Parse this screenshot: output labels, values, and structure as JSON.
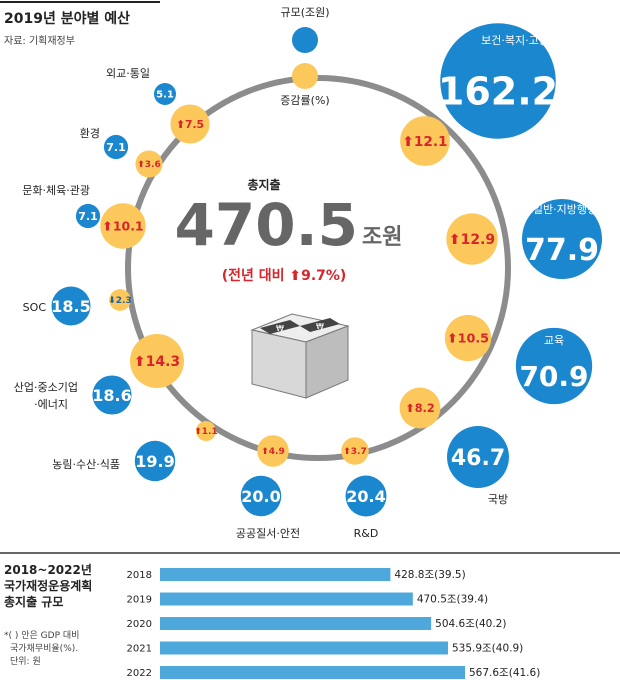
{
  "header": {
    "title": "2019년 분야별 예산",
    "source": "자료: 기획재정부"
  },
  "legend": {
    "size_label": "규모(조원)",
    "rate_label": "증감률(%)"
  },
  "center": {
    "label": "총지출",
    "value": "470.5",
    "unit": "조원",
    "change": "(전년 대비 ⬆9.7%)"
  },
  "colors": {
    "blue": "#1b87cf",
    "yellow": "#fcc85b",
    "red": "#d6262b",
    "ring": "#8c8c8c",
    "bar": "#4fa8dc"
  },
  "chart_data": [
    {
      "type": "bubble",
      "title": "2019년 분야별 예산",
      "units": {
        "size": "조원",
        "rate": "%"
      },
      "sectors": [
        {
          "name": "보건·복지·고용",
          "size": 162.2,
          "rate": 12.1
        },
        {
          "name": "일반·지방행정",
          "size": 77.9,
          "rate": 12.9
        },
        {
          "name": "교육",
          "size": 70.9,
          "rate": 10.5
        },
        {
          "name": "국방",
          "size": 46.7,
          "rate": 8.2
        },
        {
          "name": "R&D",
          "size": 20.4,
          "rate": 3.7
        },
        {
          "name": "공공질서·안전",
          "size": 20.0,
          "rate": 4.9
        },
        {
          "name": "농림·수산·식품",
          "size": 19.9,
          "rate": 1.1
        },
        {
          "name": "산업·중소기업·에너지",
          "size": 18.6,
          "rate": 14.3
        },
        {
          "name": "SOC",
          "size": 18.5,
          "rate": -2.3
        },
        {
          "name": "문화·체육·관광",
          "size": 7.1,
          "rate": 10.1
        },
        {
          "name": "환경",
          "size": 7.1,
          "rate": 3.6
        },
        {
          "name": "외교·통일",
          "size": 5.1,
          "rate": 7.5
        }
      ],
      "total": {
        "value": 470.5,
        "change": 9.7
      }
    },
    {
      "type": "bar",
      "orientation": "horizontal",
      "title": "2018~2022년 국가재정운용계획 총지출 규모",
      "categories": [
        "2018",
        "2019",
        "2020",
        "2021",
        "2022"
      ],
      "values": [
        428.8,
        470.5,
        504.6,
        535.9,
        567.6
      ],
      "ratios": [
        39.5,
        39.4,
        40.2,
        40.9,
        41.6
      ],
      "value_labels": [
        "428.8조(39.5)",
        "470.5조(39.4)",
        "504.6조(40.2)",
        "535.9조(40.9)",
        "567.6조(41.6)"
      ]
    }
  ],
  "bar_section": {
    "title_line1": "2018~2022년",
    "title_line2": "국가재정운용계획",
    "title_line3": "총지출 규모",
    "note_line1": "*( ) 안은 GDP 대비",
    "note_line2": "국가채무비율(%).",
    "note_line3": "단위: 원"
  }
}
